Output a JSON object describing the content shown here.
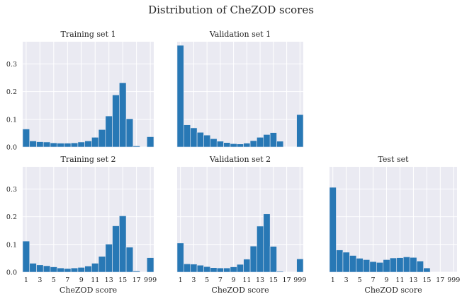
{
  "figure_title": "Distribution of CheZOD scores",
  "colors": {
    "bar": "#2878b5",
    "panel_bg": "#eaeaf2",
    "grid": "#ffffff"
  },
  "chart_data": [
    {
      "type": "bar",
      "title": "Training set 1",
      "xlabel": "",
      "ylabel": "",
      "x_ticks": [
        "1",
        "3",
        "5",
        "7",
        "9",
        "11",
        "13",
        "15",
        "17",
        "999"
      ],
      "y_ticks": [
        "0.0",
        "0.1",
        "0.2",
        "0.3"
      ],
      "ylim": [
        0,
        0.38
      ],
      "grid": true,
      "values": [
        0.065,
        0.022,
        0.019,
        0.018,
        0.015,
        0.014,
        0.014,
        0.015,
        0.018,
        0.022,
        0.035,
        0.063,
        0.112,
        0.188,
        0.232,
        0.102,
        0.004,
        0.0,
        0.037
      ]
    },
    {
      "type": "bar",
      "title": "Validation set 1",
      "xlabel": "",
      "ylabel": "",
      "x_ticks": [
        "1",
        "3",
        "5",
        "7",
        "9",
        "11",
        "13",
        "15",
        "17",
        "999"
      ],
      "y_ticks": [
        "0.0",
        "0.1",
        "0.2",
        "0.3"
      ],
      "ylim": [
        0,
        0.38
      ],
      "grid": true,
      "values": [
        0.367,
        0.08,
        0.069,
        0.053,
        0.043,
        0.03,
        0.021,
        0.016,
        0.012,
        0.011,
        0.014,
        0.023,
        0.035,
        0.045,
        0.052,
        0.021,
        0.0,
        0.0,
        0.117
      ]
    },
    {
      "type": "bar",
      "title": "Training set 2",
      "xlabel": "CheZOD score",
      "ylabel": "",
      "x_ticks": [
        "1",
        "3",
        "5",
        "7",
        "9",
        "11",
        "13",
        "15",
        "17",
        "999"
      ],
      "y_ticks": [
        "0.0",
        "0.1",
        "0.2",
        "0.3"
      ],
      "ylim": [
        0,
        0.38
      ],
      "grid": true,
      "values": [
        0.112,
        0.032,
        0.026,
        0.023,
        0.019,
        0.015,
        0.013,
        0.015,
        0.017,
        0.022,
        0.032,
        0.057,
        0.101,
        0.167,
        0.203,
        0.09,
        0.004,
        0.0,
        0.052
      ]
    },
    {
      "type": "bar",
      "title": "Validation set 2",
      "xlabel": "CheZOD score",
      "ylabel": "",
      "x_ticks": [
        "1",
        "3",
        "5",
        "7",
        "9",
        "11",
        "13",
        "15",
        "17",
        "999"
      ],
      "y_ticks": [
        "0.0",
        "0.1",
        "0.2",
        "0.3"
      ],
      "ylim": [
        0,
        0.38
      ],
      "grid": true,
      "values": [
        0.105,
        0.03,
        0.029,
        0.025,
        0.02,
        0.016,
        0.015,
        0.015,
        0.019,
        0.028,
        0.047,
        0.094,
        0.166,
        0.21,
        0.093,
        0.003,
        0.0,
        0.0,
        0.048
      ]
    },
    {
      "type": "bar",
      "title": "Test set",
      "xlabel": "CheZOD score",
      "ylabel": "",
      "x_ticks": [
        "1",
        "3",
        "5",
        "7",
        "9",
        "11",
        "13",
        "15",
        "17",
        "999"
      ],
      "y_ticks": [
        "0.0",
        "0.1",
        "0.2",
        "0.3"
      ],
      "ylim": [
        0,
        0.38
      ],
      "grid": true,
      "values": [
        0.306,
        0.08,
        0.072,
        0.06,
        0.05,
        0.045,
        0.038,
        0.035,
        0.045,
        0.051,
        0.052,
        0.055,
        0.053,
        0.04,
        0.015,
        0.0,
        0.0,
        0.0,
        0.0
      ]
    }
  ]
}
